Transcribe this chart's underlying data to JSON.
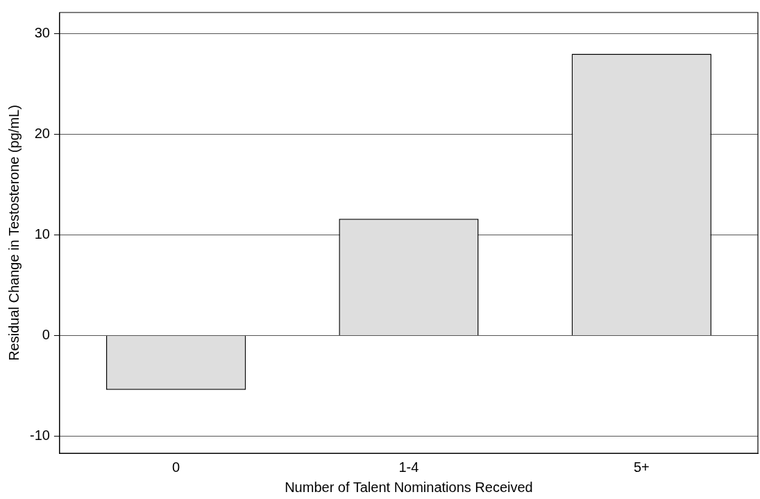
{
  "chart_data": {
    "type": "bar",
    "xlabel": "Number of Talent Nominations Received",
    "ylabel": "Residual Change in Testosterone (pg/mL)",
    "categories": [
      "0",
      "1-4",
      "5+"
    ],
    "values": [
      -5.4,
      11.6,
      28.0
    ],
    "color": "#dedede",
    "ylim": [
      -11.7,
      32.1
    ],
    "yticks": [
      -10,
      0,
      10,
      20,
      30
    ],
    "grid": "y"
  }
}
